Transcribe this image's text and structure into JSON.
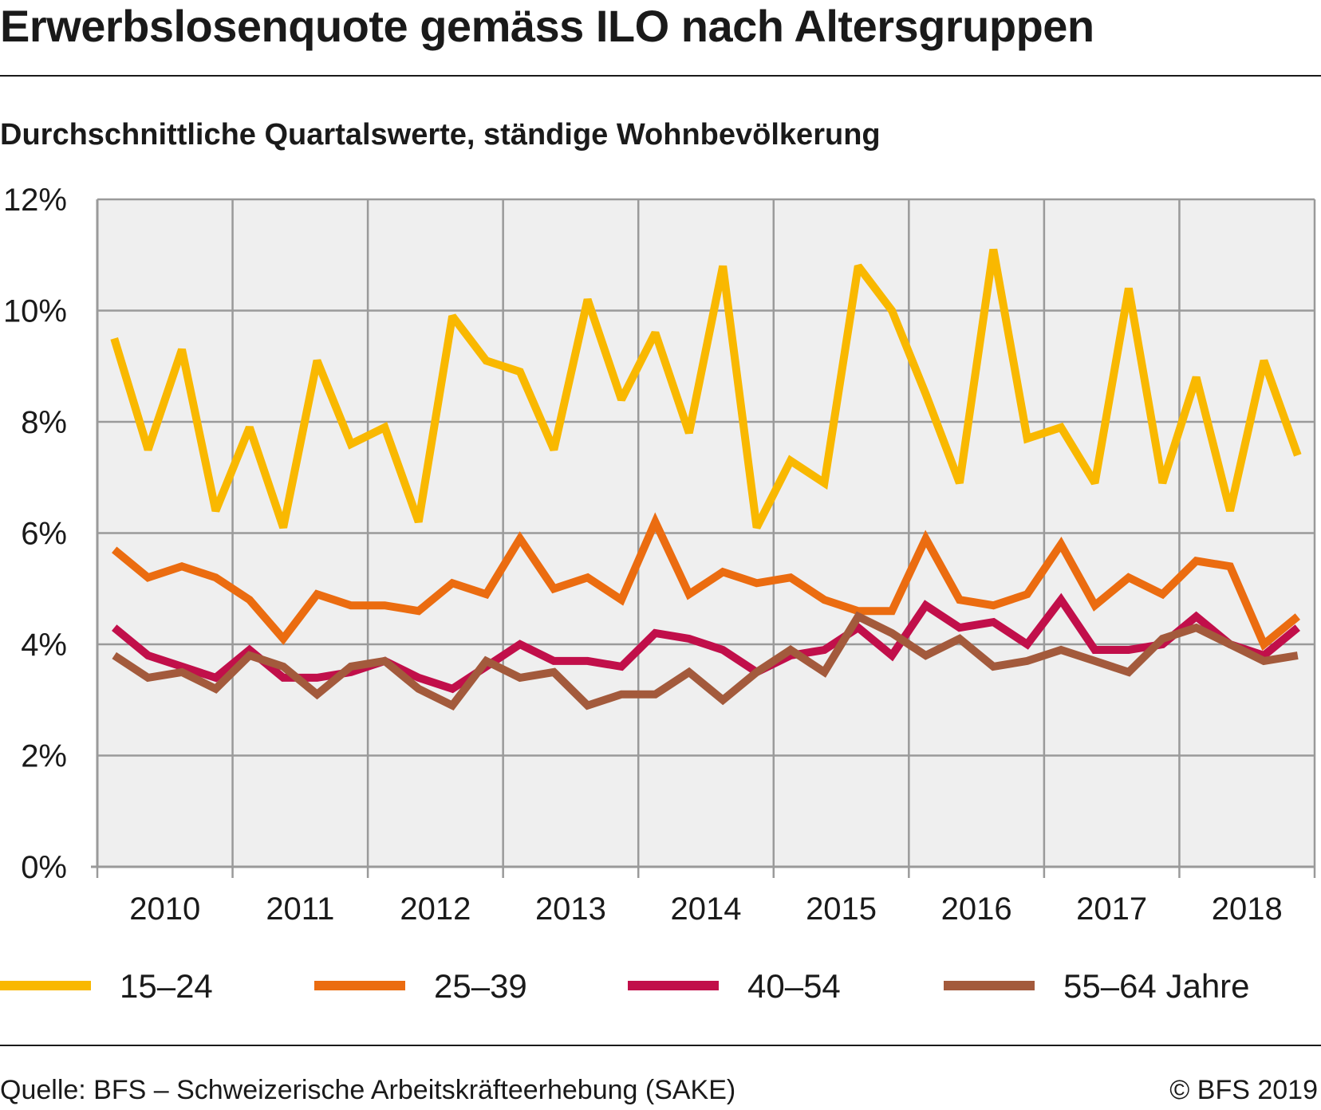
{
  "title": "Erwerbslosenquote gemäss ILO nach Altersgruppen",
  "subtitle": "Durchschnittliche Quartalswerte, ständige Wohnbevölkerung",
  "footer": {
    "source": "Quelle: BFS – Schweizerische Arbeitskräfteerhebung (SAKE)",
    "copyright": "© BFS 2019"
  },
  "chart_data": {
    "type": "line",
    "title": "Erwerbslosenquote gemäss ILO nach Altersgruppen",
    "subtitle": "Durchschnittliche Quartalswerte, ständige Wohnbevölkerung",
    "xlabel": "",
    "ylabel": "",
    "ylim": [
      0,
      12
    ],
    "yticks": [
      0,
      2,
      4,
      6,
      8,
      10,
      12
    ],
    "ytick_labels": [
      "0%",
      "2%",
      "4%",
      "6%",
      "8%",
      "10%",
      "12%"
    ],
    "years": [
      "2010",
      "2011",
      "2012",
      "2013",
      "2014",
      "2015",
      "2016",
      "2017",
      "2018"
    ],
    "quarters_per_year": 4,
    "grid": true,
    "legend_position": "bottom",
    "background": "#efefef",
    "grid_color": "#9a9a9a",
    "series": [
      {
        "name": "15–24",
        "color": "#f9b800",
        "values": [
          9.5,
          7.5,
          9.3,
          6.4,
          7.9,
          6.1,
          9.1,
          7.6,
          7.9,
          6.2,
          9.9,
          9.1,
          8.9,
          7.5,
          10.2,
          8.4,
          9.6,
          7.8,
          10.8,
          6.1,
          7.3,
          6.9,
          10.8,
          10.0,
          8.5,
          6.9,
          11.1,
          7.7,
          7.9,
          6.9,
          10.4,
          6.9,
          8.8,
          6.4,
          9.1,
          7.4
        ]
      },
      {
        "name": "25–39",
        "color": "#eb6c10",
        "values": [
          5.7,
          5.2,
          5.4,
          5.2,
          4.8,
          4.1,
          4.9,
          4.7,
          4.7,
          4.6,
          5.1,
          4.9,
          5.9,
          5.0,
          5.2,
          4.8,
          6.2,
          4.9,
          5.3,
          5.1,
          5.2,
          4.8,
          4.6,
          4.6,
          5.9,
          4.8,
          4.7,
          4.9,
          5.8,
          4.7,
          5.2,
          4.9,
          5.5,
          5.4,
          4.0,
          4.5
        ]
      },
      {
        "name": "40–54",
        "color": "#c10f4a",
        "values": [
          4.3,
          3.8,
          3.6,
          3.4,
          3.9,
          3.4,
          3.4,
          3.5,
          3.7,
          3.4,
          3.2,
          3.6,
          4.0,
          3.7,
          3.7,
          3.6,
          4.2,
          4.1,
          3.9,
          3.5,
          3.8,
          3.9,
          4.3,
          3.8,
          4.7,
          4.3,
          4.4,
          4.0,
          4.8,
          3.9,
          3.9,
          4.0,
          4.5,
          4.0,
          3.8,
          4.3
        ]
      },
      {
        "name": "55–64 Jahre",
        "color": "#a35a3c",
        "values": [
          3.8,
          3.4,
          3.5,
          3.2,
          3.8,
          3.6,
          3.1,
          3.6,
          3.7,
          3.2,
          2.9,
          3.7,
          3.4,
          3.5,
          2.9,
          3.1,
          3.1,
          3.5,
          3.0,
          3.5,
          3.9,
          3.5,
          4.5,
          4.2,
          3.8,
          4.1,
          3.6,
          3.7,
          3.9,
          3.7,
          3.5,
          4.1,
          4.3,
          4.0,
          3.7,
          3.8
        ]
      }
    ]
  }
}
